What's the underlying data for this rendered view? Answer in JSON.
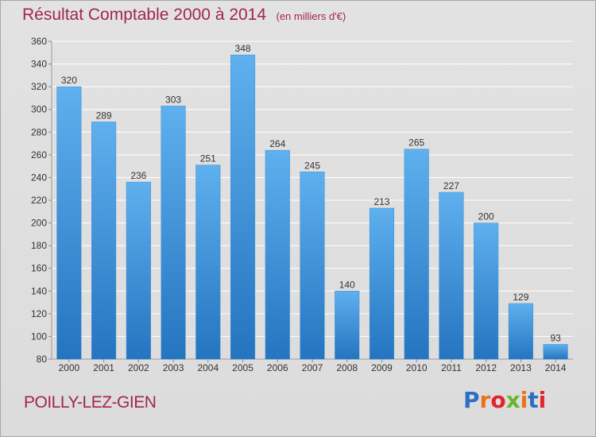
{
  "title": "Résultat Comptable 2000 à 2014",
  "subtitle": "(en milliers d'€)",
  "commune": "POILLY-LEZ-GIEN",
  "logo": {
    "text": "Proxiti",
    "colors": [
      "#2c6fc2",
      "#e8731c",
      "#e1242a",
      "#69b52d"
    ]
  },
  "colors": {
    "title": "#a3264a",
    "bar_top": "#5fb0ee",
    "bar_bottom": "#2474c0",
    "grid": "#ffffff",
    "background": "#dedede"
  },
  "chart_data": {
    "type": "bar",
    "title": "Résultat Comptable 2000 à 2014",
    "subtitle": "(en milliers d'€)",
    "categories": [
      "2000",
      "2001",
      "2002",
      "2003",
      "2004",
      "2005",
      "2006",
      "2007",
      "2008",
      "2009",
      "2010",
      "2011",
      "2012",
      "2013",
      "2014"
    ],
    "values": [
      320,
      289,
      236,
      303,
      251,
      348,
      264,
      245,
      140,
      213,
      265,
      227,
      200,
      129,
      93
    ],
    "ylim": [
      80,
      360
    ],
    "yticks": [
      80,
      100,
      120,
      140,
      160,
      180,
      200,
      220,
      240,
      260,
      280,
      300,
      320,
      340,
      360
    ],
    "xlabel": "",
    "ylabel": "",
    "grid": true,
    "data_labels": true
  }
}
